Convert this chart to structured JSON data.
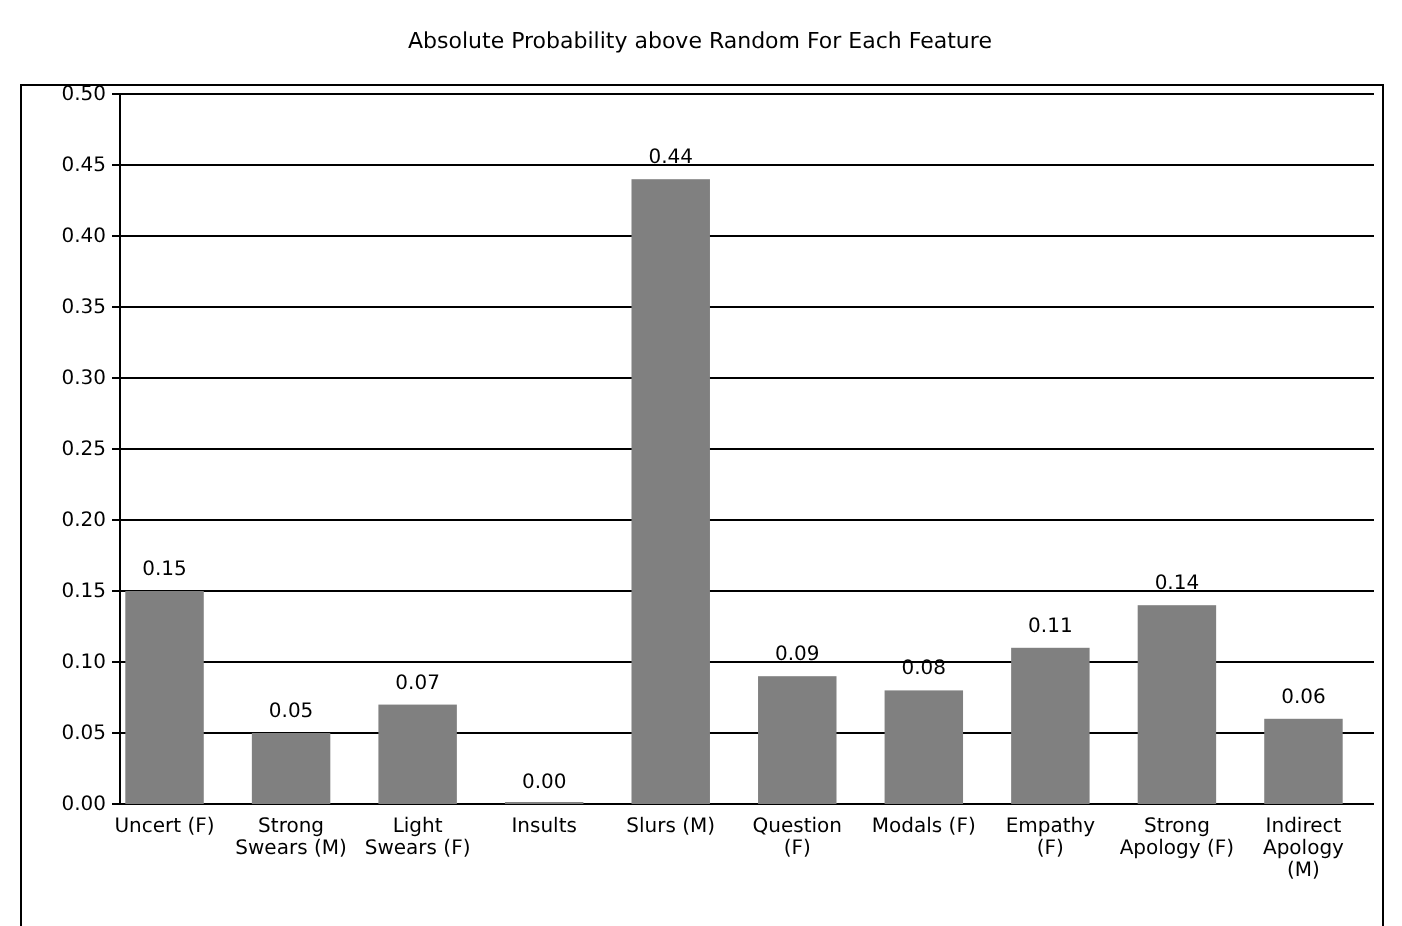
{
  "chart_data": {
    "type": "bar",
    "title": "Absolute Probability above Random For Each Feature",
    "categories": [
      "Uncert (F)",
      "Strong Swears (M)",
      "Light Swears (F)",
      "Insults",
      "Slurs (M)",
      "Question (F)",
      "Modals (F)",
      "Empathy (F)",
      "Strong Apology (F)",
      "Indirect Apology (M)"
    ],
    "values": [
      0.15,
      0.05,
      0.07,
      0.0,
      0.44,
      0.09,
      0.08,
      0.11,
      0.14,
      0.06
    ],
    "color": "#808080",
    "ylim": [
      0,
      0.5
    ],
    "yticks": [
      {
        "value": 0,
        "label": "0.00"
      },
      {
        "value": 0.05,
        "label": "0.05"
      },
      {
        "value": 0.1,
        "label": "0.10"
      },
      {
        "value": 0.15,
        "label": "0.15"
      },
      {
        "value": 0.2,
        "label": "0.20"
      },
      {
        "value": 0.25,
        "label": "0.25"
      },
      {
        "value": 0.3,
        "label": "0.30"
      },
      {
        "value": 0.35,
        "label": "0.35"
      },
      {
        "value": 0.4,
        "label": "0.40"
      },
      {
        "value": 0.45,
        "label": "0.45"
      },
      {
        "value": 0.5,
        "label": "0.50"
      }
    ],
    "value_labels": [
      "0.15",
      "0.05",
      "0.07",
      "0.00",
      "0.44",
      "0.09",
      "0.08",
      "0.11",
      "0.14",
      "0.06"
    ],
    "grid": "y"
  }
}
